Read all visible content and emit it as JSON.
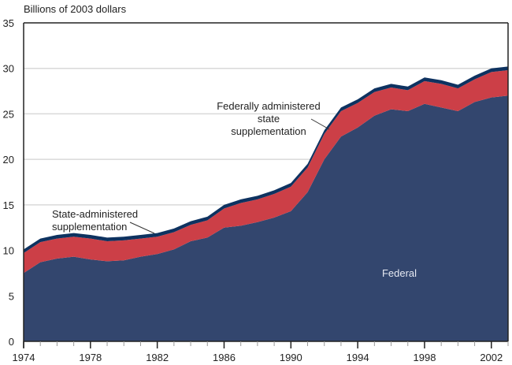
{
  "chart_data": {
    "type": "area",
    "stacked": true,
    "title": "",
    "ylabel": "Billions of 2003 dollars",
    "xlabel": "",
    "ylim": [
      0,
      35
    ],
    "xlim": [
      1974,
      2003
    ],
    "yticks": [
      0,
      5,
      10,
      15,
      20,
      25,
      30,
      35
    ],
    "ytick_labels": [
      "0",
      "5",
      "10",
      "15",
      "20",
      "25",
      "30",
      "35"
    ],
    "xticks_major": [
      1974,
      1978,
      1982,
      1986,
      1990,
      1994,
      1998,
      2002
    ],
    "xtick_labels": [
      "1974",
      "1978",
      "1982",
      "1986",
      "1990",
      "1994",
      "1998",
      "2002"
    ],
    "grid": "horizontal",
    "x": [
      1974,
      1975,
      1976,
      1977,
      1978,
      1979,
      1980,
      1981,
      1982,
      1983,
      1984,
      1985,
      1986,
      1987,
      1988,
      1989,
      1990,
      1991,
      1992,
      1993,
      1994,
      1995,
      1996,
      1997,
      1998,
      1999,
      2000,
      2001,
      2002,
      2003
    ],
    "series": [
      {
        "name": "Federal",
        "color": "#33466e",
        "values": [
          7.5,
          8.7,
          9.1,
          9.3,
          9.0,
          8.8,
          8.9,
          9.3,
          9.6,
          10.1,
          11.0,
          11.4,
          12.5,
          12.7,
          13.1,
          13.6,
          14.3,
          16.4,
          20.0,
          22.5,
          23.5,
          24.8,
          25.5,
          25.3,
          26.1,
          25.7,
          25.3,
          26.3,
          26.8,
          27.0
        ]
      },
      {
        "name": "Federally administered state supplementation",
        "color": "#cc3f47",
        "values": [
          2.2,
          2.2,
          2.2,
          2.2,
          2.3,
          2.2,
          2.2,
          2.0,
          1.9,
          1.9,
          1.8,
          1.9,
          2.1,
          2.5,
          2.5,
          2.6,
          2.7,
          2.7,
          2.8,
          2.8,
          2.7,
          2.6,
          2.4,
          2.3,
          2.5,
          2.6,
          2.5,
          2.5,
          2.8,
          2.8
        ]
      },
      {
        "name": "State-administered supplementation",
        "color": "#0e3260",
        "values": [
          0.4,
          0.4,
          0.4,
          0.4,
          0.4,
          0.4,
          0.4,
          0.4,
          0.4,
          0.4,
          0.4,
          0.4,
          0.4,
          0.4,
          0.4,
          0.4,
          0.4,
          0.4,
          0.4,
          0.4,
          0.4,
          0.4,
          0.4,
          0.4,
          0.4,
          0.4,
          0.4,
          0.4,
          0.4,
          0.4
        ]
      }
    ],
    "annotations": [
      {
        "text_lines": [
          "State-administered",
          "supplementation"
        ],
        "series": "State-administered supplementation",
        "at_x": 1982
      },
      {
        "text_lines": [
          "Federally administered",
          "state",
          "supplementation"
        ],
        "series": "Federally administered state supplementation",
        "at_x": 1992
      },
      {
        "text_lines": [
          "Federal"
        ],
        "series": "Federal",
        "at_x": 1997.5
      }
    ]
  },
  "colors": {
    "gridline": "#d9d9d9",
    "axis": "#222222",
    "leader": "#333333"
  }
}
